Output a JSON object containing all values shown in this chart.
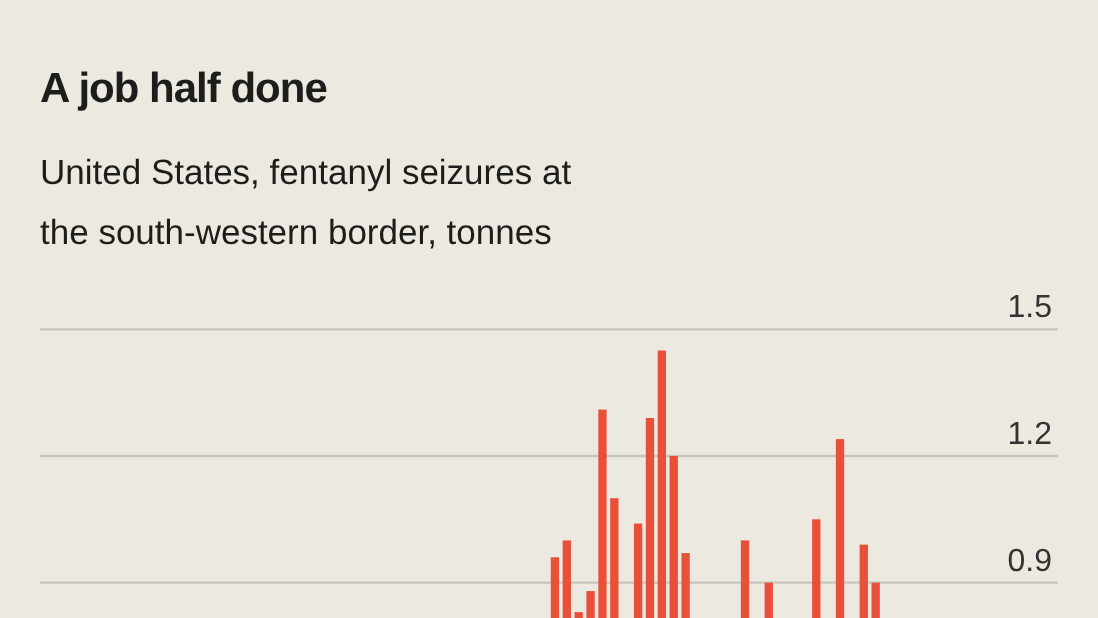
{
  "chart_data": {
    "type": "bar",
    "title": "A job half done",
    "subtitle": "United States, fentanyl seizures at the south-western border, tonnes",
    "categories": [
      null,
      null,
      null,
      null,
      null,
      null,
      null,
      null,
      null,
      null,
      null,
      null,
      null,
      null,
      null,
      null,
      null,
      null,
      null,
      null,
      null,
      null,
      null,
      null,
      null,
      null,
      null,
      null,
      null,
      null,
      null,
      null,
      null,
      null,
      null,
      null,
      null,
      null,
      null,
      null,
      null,
      null,
      null,
      null,
      null,
      null,
      null,
      null,
      null,
      null,
      null,
      null,
      null,
      null,
      null,
      null,
      null,
      null,
      null,
      null,
      null,
      null,
      null,
      null,
      null,
      null,
      null,
      null,
      null,
      null,
      null,
      null,
      null,
      null,
      null,
      null,
      null,
      null,
      null,
      null,
      null,
      null,
      null,
      null,
      null,
      null
    ],
    "values": [
      null,
      null,
      null,
      null,
      null,
      null,
      null,
      null,
      null,
      null,
      null,
      null,
      null,
      null,
      null,
      null,
      null,
      null,
      null,
      null,
      null,
      null,
      null,
      null,
      null,
      null,
      null,
      null,
      null,
      null,
      null,
      null,
      null,
      null,
      null,
      null,
      null,
      null,
      null,
      null,
      null,
      null,
      null,
      0.96,
      1.0,
      0.83,
      0.88,
      1.31,
      1.1,
      null,
      1.04,
      1.29,
      1.45,
      1.2,
      0.97,
      null,
      null,
      null,
      null,
      1.0,
      null,
      0.9,
      null,
      null,
      null,
      1.05,
      null,
      1.24,
      null,
      0.99,
      0.9,
      null,
      null,
      null,
      null,
      null,
      null,
      null,
      null,
      null,
      null,
      null,
      null,
      null,
      null,
      null
    ],
    "color": "#e8503a",
    "ylim": [
      0,
      1.5
    ],
    "yticks": [
      0.9,
      1.2,
      1.5
    ],
    "grid": "y",
    "tick_labels": "y"
  }
}
